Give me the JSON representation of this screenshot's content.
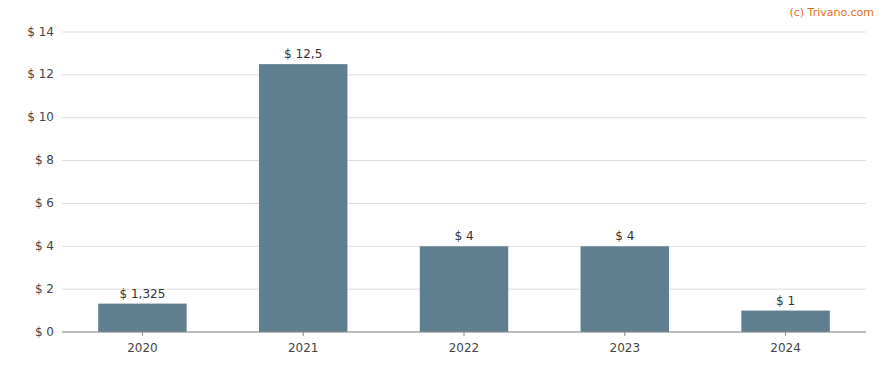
{
  "chart_data": {
    "type": "bar",
    "categories": [
      "2020",
      "2021",
      "2022",
      "2023",
      "2024"
    ],
    "values": [
      1.325,
      12.5,
      4.0,
      4.0,
      1.0
    ],
    "value_labels": [
      "$ 1,325",
      "$ 12,5",
      "$ 4",
      "$ 4",
      "$ 1"
    ],
    "data_labels": true,
    "color": "#5f7f90",
    "ylim": [
      0,
      14
    ],
    "yticks": [
      {
        "value": 0,
        "label": "$ 0"
      },
      {
        "value": 2,
        "label": "$ 2"
      },
      {
        "value": 4,
        "label": "$ 4"
      },
      {
        "value": 6,
        "label": "$ 6"
      },
      {
        "value": 8,
        "label": "$ 8"
      },
      {
        "value": 10,
        "label": "$ 10"
      },
      {
        "value": 12,
        "label": "$ 12"
      },
      {
        "value": 14,
        "label": "$ 14"
      }
    ],
    "grid": true,
    "annotations": [
      "(c) Trivano.com"
    ]
  }
}
